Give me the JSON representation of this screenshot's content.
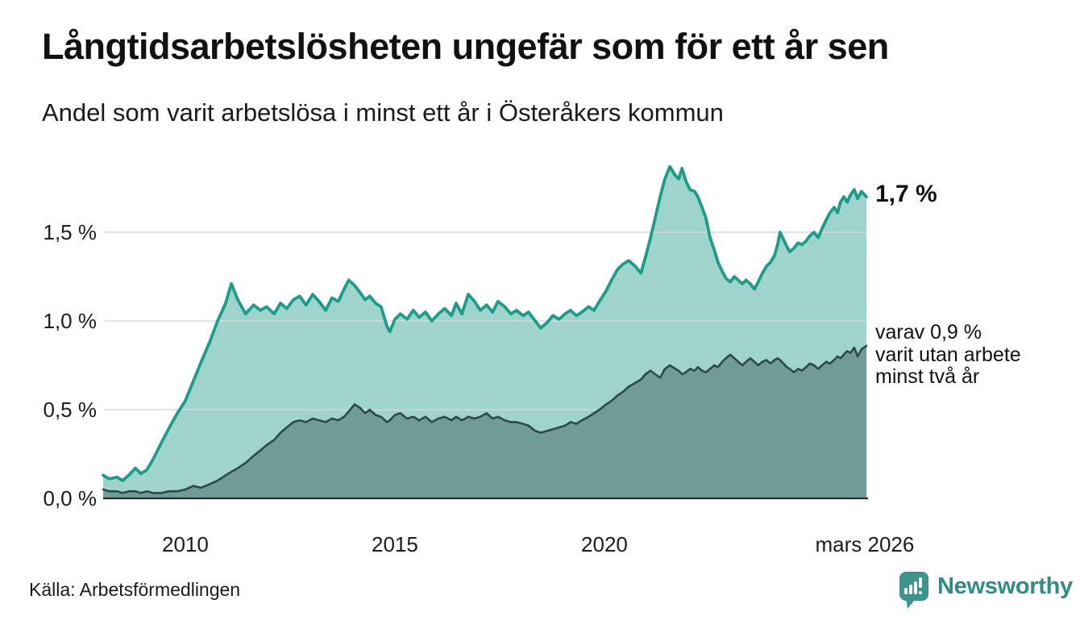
{
  "header": {
    "title": "Långtidsarbetslösheten ungefär som för ett år sen",
    "subtitle": "Andel som varit arbetslösa i minst ett år i Österåkers kommun"
  },
  "annotations": {
    "primary": "1,7 %",
    "secondary": "varav 0,9 %\nvarit utan arbete\nminst två år"
  },
  "footer": {
    "source": "Källa: Arbetsförmedlingen",
    "brand": "Newsworthy",
    "brand_icon": "newsworthy-chart-bubble-icon"
  },
  "colors": {
    "grid": "#d8d8d8",
    "axis": "#2b2b2b",
    "tick_text": "#1c1c1c",
    "brand_teal": "#2f8d85",
    "brand_icon_teal": "#3e948c"
  },
  "chart_data": {
    "type": "area",
    "title": "Långtidsarbetslösheten ungefär som för ett år sen",
    "subtitle": "Andel som varit arbetslösa i minst ett år i Österåkers kommun",
    "unit": "%",
    "xlabel": "",
    "ylabel": "",
    "grid": "horizontal",
    "legend": "end-labels",
    "xlim": [
      2008.04,
      2026.25
    ],
    "ylim": [
      0,
      1.95
    ],
    "yticks": [
      {
        "value": 0.0,
        "label": "0,0 %"
      },
      {
        "value": 0.5,
        "label": "0,5 %"
      },
      {
        "value": 1.0,
        "label": "1,0 %"
      },
      {
        "value": 1.5,
        "label": "1,5 %"
      }
    ],
    "xticks": [
      {
        "value": 2010,
        "label": "2010"
      },
      {
        "value": 2015,
        "label": "2015"
      },
      {
        "value": 2020,
        "label": "2020"
      },
      {
        "value": 2026.21,
        "label": "mars 2026"
      }
    ],
    "x": [
      2008.04,
      2008.19,
      2008.37,
      2008.5,
      2008.65,
      2008.81,
      2008.94,
      2009.08,
      2009.23,
      2009.42,
      2009.62,
      2009.81,
      2010,
      2010.19,
      2010.38,
      2010.58,
      2010.77,
      2010.96,
      2011.1,
      2011.25,
      2011.44,
      2011.63,
      2011.79,
      2011.94,
      2012.12,
      2012.27,
      2012.42,
      2012.58,
      2012.73,
      2012.88,
      2013.04,
      2013.19,
      2013.35,
      2013.5,
      2013.65,
      2013.79,
      2013.9,
      2014.04,
      2014.17,
      2014.29,
      2014.4,
      2014.54,
      2014.67,
      2014.81,
      2014.88,
      2015,
      2015.13,
      2015.29,
      2015.44,
      2015.58,
      2015.73,
      2015.88,
      2016.04,
      2016.19,
      2016.35,
      2016.46,
      2016.6,
      2016.75,
      2016.9,
      2017.04,
      2017.19,
      2017.33,
      2017.46,
      2017.62,
      2017.77,
      2017.9,
      2018.06,
      2018.19,
      2018.35,
      2018.48,
      2018.63,
      2018.77,
      2018.92,
      2019.06,
      2019.19,
      2019.33,
      2019.46,
      2019.62,
      2019.75,
      2019.88,
      2020.04,
      2020.17,
      2020.31,
      2020.44,
      2020.58,
      2020.73,
      2020.87,
      2020.98,
      2021.1,
      2021.21,
      2021.33,
      2021.44,
      2021.56,
      2021.69,
      2021.77,
      2021.85,
      2021.94,
      2022.04,
      2022.15,
      2022.23,
      2022.33,
      2022.42,
      2022.52,
      2022.62,
      2022.71,
      2022.81,
      2022.9,
      2023,
      2023.1,
      2023.19,
      2023.29,
      2023.38,
      2023.48,
      2023.58,
      2023.67,
      2023.77,
      2023.87,
      2023.96,
      2024.06,
      2024.13,
      2024.19,
      2024.27,
      2024.35,
      2024.42,
      2024.52,
      2024.62,
      2024.71,
      2024.81,
      2024.9,
      2025,
      2025.1,
      2025.19,
      2025.29,
      2025.38,
      2025.48,
      2025.56,
      2025.63,
      2025.71,
      2025.79,
      2025.87,
      2025.96,
      2026.04,
      2026.13,
      2026.25
    ],
    "series": [
      {
        "name": "Andel som varit arbetslösa i minst ett år",
        "end_label": "1,7 %",
        "line_color": "#1e9c8b",
        "fill_color": "#9fd4cd",
        "line_width": 3.8,
        "values": [
          0.13,
          0.11,
          0.12,
          0.1,
          0.13,
          0.17,
          0.14,
          0.16,
          0.22,
          0.31,
          0.4,
          0.48,
          0.55,
          0.66,
          0.77,
          0.88,
          1.0,
          1.1,
          1.21,
          1.12,
          1.04,
          1.09,
          1.06,
          1.08,
          1.04,
          1.1,
          1.07,
          1.12,
          1.14,
          1.09,
          1.15,
          1.11,
          1.06,
          1.13,
          1.11,
          1.18,
          1.23,
          1.2,
          1.16,
          1.12,
          1.14,
          1.1,
          1.08,
          0.97,
          0.94,
          1.01,
          1.04,
          1.01,
          1.06,
          1.02,
          1.05,
          1.0,
          1.04,
          1.07,
          1.03,
          1.1,
          1.04,
          1.15,
          1.11,
          1.06,
          1.09,
          1.05,
          1.11,
          1.08,
          1.04,
          1.06,
          1.03,
          1.05,
          1.0,
          0.96,
          0.99,
          1.03,
          1.01,
          1.04,
          1.06,
          1.03,
          1.05,
          1.08,
          1.06,
          1.11,
          1.17,
          1.23,
          1.29,
          1.32,
          1.34,
          1.31,
          1.27,
          1.36,
          1.47,
          1.58,
          1.7,
          1.8,
          1.87,
          1.82,
          1.8,
          1.86,
          1.79,
          1.74,
          1.73,
          1.7,
          1.64,
          1.58,
          1.47,
          1.4,
          1.33,
          1.28,
          1.24,
          1.22,
          1.25,
          1.23,
          1.21,
          1.23,
          1.21,
          1.18,
          1.22,
          1.27,
          1.31,
          1.33,
          1.37,
          1.43,
          1.5,
          1.46,
          1.42,
          1.39,
          1.41,
          1.44,
          1.43,
          1.45,
          1.48,
          1.5,
          1.47,
          1.52,
          1.57,
          1.61,
          1.64,
          1.61,
          1.67,
          1.7,
          1.67,
          1.71,
          1.74,
          1.69,
          1.73,
          1.7
        ]
      },
      {
        "name": "varav utan arbete minst två år",
        "end_label": "varav 0,9 % varit utan arbete minst två år",
        "line_color": "#2d4a46",
        "fill_color": "#719b96",
        "line_width": 2.6,
        "values": [
          0.05,
          0.04,
          0.04,
          0.03,
          0.04,
          0.04,
          0.03,
          0.04,
          0.03,
          0.03,
          0.04,
          0.04,
          0.05,
          0.07,
          0.06,
          0.08,
          0.1,
          0.13,
          0.15,
          0.17,
          0.2,
          0.24,
          0.27,
          0.3,
          0.33,
          0.37,
          0.4,
          0.43,
          0.44,
          0.43,
          0.45,
          0.44,
          0.43,
          0.45,
          0.44,
          0.46,
          0.49,
          0.53,
          0.51,
          0.48,
          0.5,
          0.47,
          0.46,
          0.43,
          0.44,
          0.47,
          0.48,
          0.45,
          0.46,
          0.44,
          0.46,
          0.43,
          0.45,
          0.46,
          0.44,
          0.46,
          0.44,
          0.46,
          0.45,
          0.46,
          0.48,
          0.45,
          0.46,
          0.44,
          0.43,
          0.43,
          0.42,
          0.41,
          0.38,
          0.37,
          0.38,
          0.39,
          0.4,
          0.41,
          0.43,
          0.42,
          0.44,
          0.46,
          0.48,
          0.5,
          0.53,
          0.55,
          0.58,
          0.6,
          0.63,
          0.65,
          0.67,
          0.7,
          0.72,
          0.7,
          0.68,
          0.73,
          0.75,
          0.73,
          0.72,
          0.7,
          0.71,
          0.73,
          0.72,
          0.74,
          0.72,
          0.71,
          0.73,
          0.75,
          0.74,
          0.77,
          0.79,
          0.81,
          0.79,
          0.77,
          0.75,
          0.77,
          0.79,
          0.77,
          0.75,
          0.77,
          0.78,
          0.76,
          0.78,
          0.79,
          0.78,
          0.76,
          0.74,
          0.73,
          0.71,
          0.73,
          0.72,
          0.74,
          0.76,
          0.75,
          0.73,
          0.75,
          0.77,
          0.76,
          0.78,
          0.8,
          0.79,
          0.81,
          0.83,
          0.82,
          0.85,
          0.8,
          0.84,
          0.86
        ]
      }
    ]
  }
}
